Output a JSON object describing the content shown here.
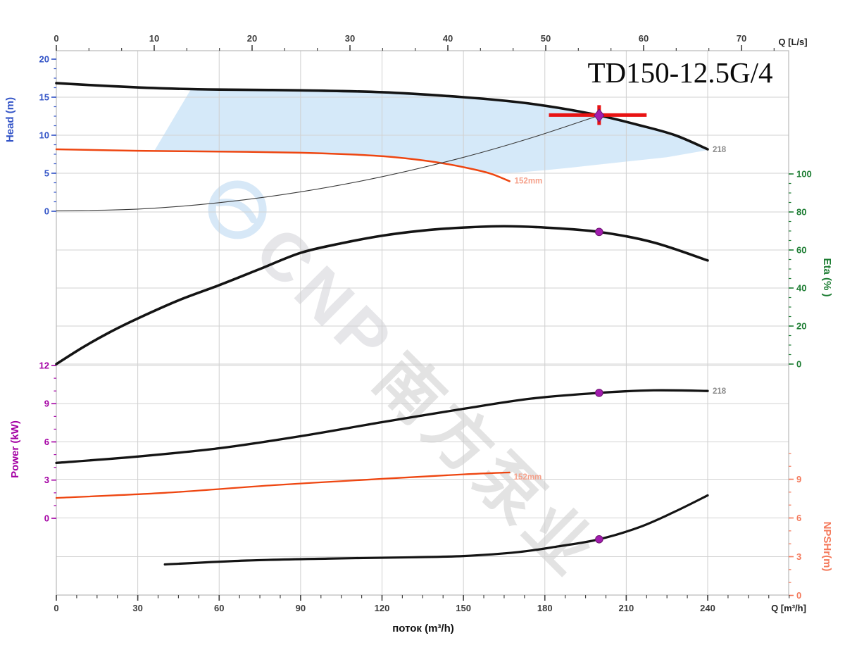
{
  "title": "TD150-12.5G/4",
  "watermark": {
    "latin": "CNP",
    "cjk": "南方泵业"
  },
  "chart_data": {
    "type": "line",
    "title": "TD150-12.5G/4",
    "grid": true,
    "axes": {
      "x_bottom": {
        "label": "поток (m³/h)",
        "unit_label": "Q [m³/h]",
        "min": 0,
        "max": 269.8,
        "ticks": [
          0,
          30,
          60,
          90,
          120,
          150,
          180,
          210,
          240
        ],
        "minor_step": 7.5,
        "color": "#3c3c3c"
      },
      "x_top": {
        "unit_label": "Q [L/s]",
        "min": 0,
        "max": 74.8,
        "ticks": [
          0,
          10,
          20,
          30,
          40,
          50,
          60,
          70
        ],
        "minor_step": 3.3333,
        "color": "#3c3c3c"
      },
      "y_head": {
        "label": "Head (m)",
        "min": 0,
        "max": 20,
        "ticks": [
          0,
          5,
          10,
          15,
          20
        ],
        "minor_step": 1.25,
        "minor_max": 20,
        "color": "#3354c7"
      },
      "y_eta": {
        "label": "Eta (% )",
        "min": 0,
        "max": 100,
        "ticks": [
          0,
          20,
          40,
          60,
          80,
          100
        ],
        "minor_step": 5,
        "minor_max": 100,
        "color": "#1d7d33"
      },
      "y_power": {
        "label": "Power (kW)",
        "min": 0,
        "max": 12,
        "ticks": [
          0,
          3,
          6,
          9,
          12
        ],
        "minor_step": 1,
        "minor_max": 12,
        "color": "#a400a4"
      },
      "y_npsh": {
        "label": "NPSHr(m)",
        "min": 0,
        "max": 9,
        "ticks": [
          0,
          3,
          6,
          9
        ],
        "minor_step": 1,
        "minor_max": 11,
        "color": "#f4795b"
      }
    },
    "series": [
      {
        "id": "head-218",
        "axis": "head",
        "color": "#141414",
        "width": 3.6,
        "points": [
          [
            0,
            16.85
          ],
          [
            20,
            16.45
          ],
          [
            40,
            16.15
          ],
          [
            60,
            16.0
          ],
          [
            90,
            15.9
          ],
          [
            120,
            15.65
          ],
          [
            150,
            15.0
          ],
          [
            170,
            14.35
          ],
          [
            185,
            13.6
          ],
          [
            200,
            12.6
          ],
          [
            215,
            11.3
          ],
          [
            228,
            10.0
          ],
          [
            240,
            8.15
          ]
        ],
        "end_label": {
          "text": "218",
          "color": "#8a8a8a",
          "dx": 7,
          "dy": 4
        }
      },
      {
        "id": "head-152mm",
        "axis": "head",
        "color": "#ee4611",
        "width": 2.5,
        "points": [
          [
            0,
            8.15
          ],
          [
            30,
            7.95
          ],
          [
            60,
            7.85
          ],
          [
            90,
            7.7
          ],
          [
            110,
            7.45
          ],
          [
            125,
            7.1
          ],
          [
            140,
            6.45
          ],
          [
            152,
            5.65
          ],
          [
            160,
            4.95
          ],
          [
            167,
            3.95
          ]
        ],
        "end_label": {
          "text": "152mm",
          "color": "#f5a18b",
          "dx": 7,
          "dy": 3
        }
      },
      {
        "id": "system-curve",
        "axis": "head",
        "color": "#3a3a3a",
        "width": 1.1,
        "points": [
          [
            0,
            0.05
          ],
          [
            30,
            0.28
          ],
          [
            60,
            1.13
          ],
          [
            90,
            2.55
          ],
          [
            120,
            4.54
          ],
          [
            150,
            7.09
          ],
          [
            175,
            9.65
          ],
          [
            200,
            12.6
          ]
        ]
      },
      {
        "id": "efficiency",
        "axis": "eta",
        "color": "#141414",
        "width": 3.6,
        "points": [
          [
            0,
            0
          ],
          [
            10,
            9
          ],
          [
            20,
            17
          ],
          [
            30,
            24
          ],
          [
            45,
            33.5
          ],
          [
            60,
            41.5
          ],
          [
            75,
            50
          ],
          [
            90,
            58.5
          ],
          [
            105,
            63.5
          ],
          [
            120,
            67.5
          ],
          [
            135,
            70.2
          ],
          [
            150,
            71.8
          ],
          [
            165,
            72.5
          ],
          [
            180,
            71.8
          ],
          [
            200,
            69.5
          ],
          [
            220,
            64
          ],
          [
            240,
            54.5
          ]
        ]
      },
      {
        "id": "power-218",
        "axis": "power",
        "color": "#141414",
        "width": 3.3,
        "points": [
          [
            0,
            4.35
          ],
          [
            30,
            4.85
          ],
          [
            60,
            5.5
          ],
          [
            90,
            6.45
          ],
          [
            120,
            7.55
          ],
          [
            150,
            8.6
          ],
          [
            175,
            9.4
          ],
          [
            200,
            9.85
          ],
          [
            220,
            10.05
          ],
          [
            240,
            10.0
          ]
        ],
        "end_label": {
          "text": "218",
          "color": "#8a8a8a",
          "dx": 7,
          "dy": 4
        }
      },
      {
        "id": "power-152mm",
        "axis": "power",
        "color": "#ee4611",
        "width": 2.3,
        "points": [
          [
            0,
            1.6
          ],
          [
            40,
            2.0
          ],
          [
            80,
            2.6
          ],
          [
            120,
            3.1
          ],
          [
            150,
            3.45
          ],
          [
            167,
            3.6
          ]
        ],
        "end_label": {
          "text": "152mm",
          "color": "#f5a18b",
          "dx": 6,
          "dy": 10
        }
      },
      {
        "id": "npshr",
        "axis": "npsh",
        "color": "#141414",
        "width": 3.2,
        "points": [
          [
            40,
            2.4
          ],
          [
            70,
            2.7
          ],
          [
            100,
            2.85
          ],
          [
            130,
            2.95
          ],
          [
            150,
            3.05
          ],
          [
            170,
            3.35
          ],
          [
            185,
            3.8
          ],
          [
            200,
            4.35
          ],
          [
            215,
            5.3
          ],
          [
            228,
            6.5
          ],
          [
            240,
            7.75
          ]
        ]
      }
    ],
    "operating_region": {
      "color": "#d5e9f9",
      "points": [
        [
          36,
          7.9
        ],
        [
          49.5,
          16.0
        ],
        [
          60,
          15.95
        ],
        [
          90,
          15.82
        ],
        [
          120,
          15.58
        ],
        [
          150,
          14.92
        ],
        [
          170,
          14.28
        ],
        [
          185,
          13.52
        ],
        [
          200,
          12.5
        ],
        [
          215,
          11.2
        ],
        [
          228,
          9.9
        ],
        [
          240,
          8.05
        ],
        [
          225,
          7.1
        ],
        [
          213,
          6.65
        ],
        [
          200,
          6.15
        ],
        [
          190,
          5.75
        ],
        [
          180,
          5.4
        ],
        [
          170,
          5.1
        ],
        [
          163,
          5.0
        ],
        [
          155,
          5.35
        ],
        [
          148,
          5.85
        ],
        [
          140,
          6.4
        ],
        [
          130,
          6.9
        ],
        [
          120,
          7.18
        ],
        [
          90,
          7.65
        ],
        [
          60,
          7.8
        ],
        [
          36,
          7.9
        ]
      ]
    },
    "duty_point": {
      "q": 200,
      "head": 12.6,
      "eta": 69.5,
      "power": 9.85,
      "npsh": 4.35,
      "marker_color": "#a21caf",
      "marker_stroke": "#6d1570",
      "crosshair_color": "#e81313",
      "crosshair": {
        "q_from": 181.5,
        "q_to": 217.5,
        "head": 12.65,
        "head_from": 11.35,
        "head_to": 13.95
      }
    }
  }
}
